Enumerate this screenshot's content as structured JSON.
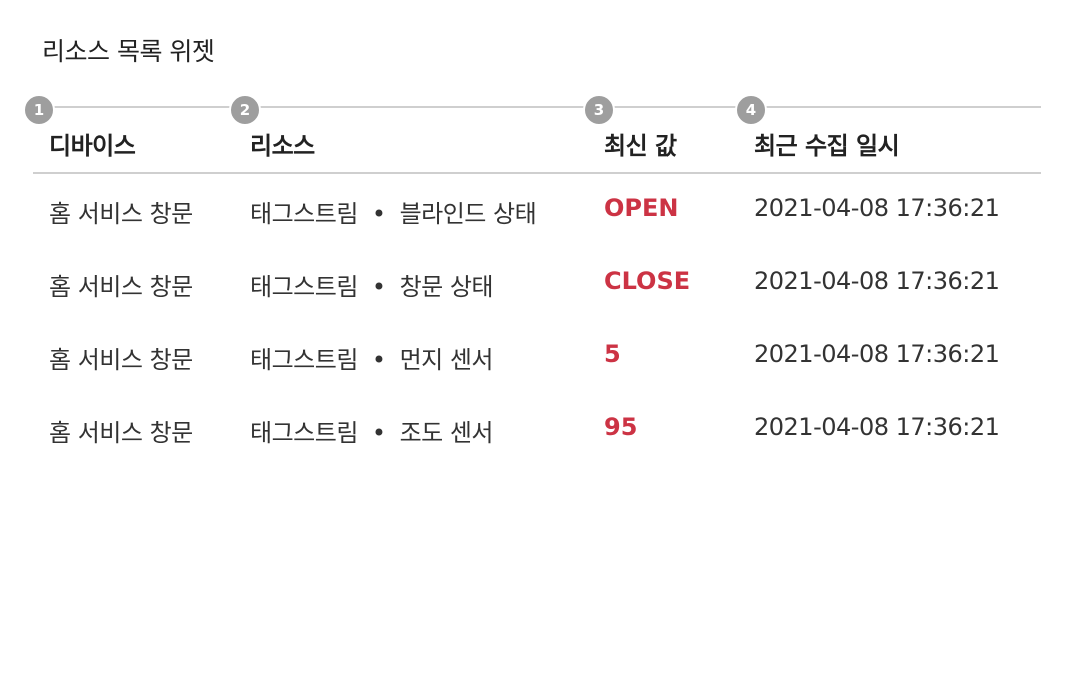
{
  "widget": {
    "title": "리소스 목록 위젯"
  },
  "markers": [
    "1",
    "2",
    "3",
    "4"
  ],
  "columns": {
    "device": "디바이스",
    "resource": "리소스",
    "latest_value": "최신 값",
    "last_collected": "최근 수집 일시"
  },
  "separator": "•",
  "rows": [
    {
      "device": "홈 서비스 창문",
      "source": "태그스트림",
      "resource": "블라인드 상태",
      "value": "OPEN",
      "time": "2021-04-08 17:36:21"
    },
    {
      "device": "홈 서비스 창문",
      "source": "태그스트림",
      "resource": "창문 상태",
      "value": "CLOSE",
      "time": "2021-04-08 17:36:21"
    },
    {
      "device": "홈 서비스 창문",
      "source": "태그스트림",
      "resource": "먼지 센서",
      "value": "5",
      "time": "2021-04-08 17:36:21"
    },
    {
      "device": "홈 서비스 창문",
      "source": "태그스트림",
      "resource": "조도 센서",
      "value": "95",
      "time": "2021-04-08 17:36:21"
    }
  ],
  "colors": {
    "value_accent": "#cc3344",
    "marker": "#9e9e9e",
    "divider": "#cfcfcf"
  }
}
